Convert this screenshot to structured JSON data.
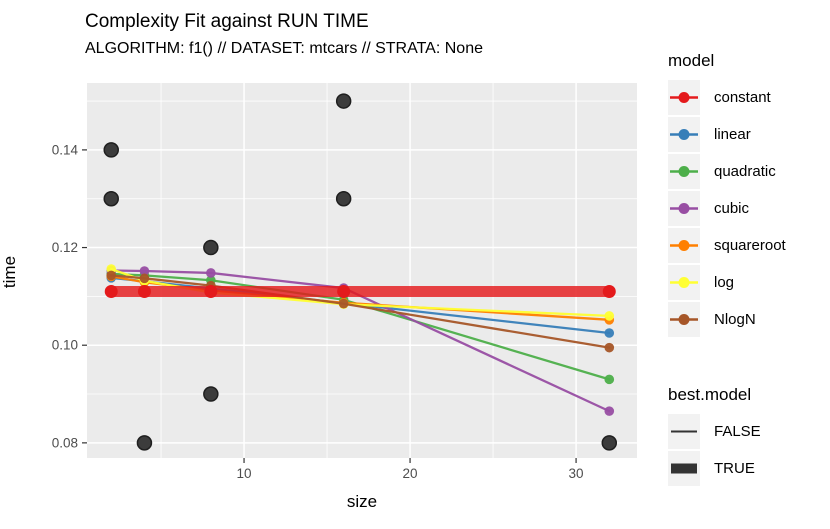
{
  "chart_data": {
    "type": "line",
    "title": "Complexity Fit against RUN TIME",
    "subtitle": "ALGORITHM: f1() // DATASET: mtcars // STRATA: None",
    "xlabel": "size",
    "ylabel": "time",
    "xlim": [
      0.54,
      33.67
    ],
    "ylim": [
      0.0769,
      0.1537
    ],
    "x_major_ticks": [
      10,
      20,
      30
    ],
    "x_tick_labels": [
      "10",
      "20",
      "30"
    ],
    "x_minor_gridlines": [
      5,
      15,
      25
    ],
    "y_major_ticks": [
      0.08,
      0.1,
      0.12,
      0.14
    ],
    "y_tick_labels": [
      "0.08",
      "0.10",
      "0.12",
      "0.14"
    ],
    "y_minor_gridlines": [
      0.09,
      0.11,
      0.13,
      0.15
    ],
    "grid": true,
    "legend_position": "right",
    "panel_background": "#ebebeb",
    "gridline_color": "#ffffff",
    "tick_mark_color": "#333333",
    "tick_text_color": "#4d4d4d",
    "x": [
      2,
      4,
      8,
      16,
      32
    ],
    "series": [
      {
        "name": "constant",
        "color": "#E41A1C",
        "best": true,
        "values": [
          0.111,
          0.111,
          0.111,
          0.111,
          0.111
        ]
      },
      {
        "name": "linear",
        "color": "#377EB8",
        "best": false,
        "values": [
          0.1138,
          0.1131,
          0.1116,
          0.1086,
          0.1025
        ]
      },
      {
        "name": "quadratic",
        "color": "#4DAF4A",
        "best": false,
        "values": [
          0.1146,
          0.1143,
          0.1133,
          0.1093,
          0.093
        ]
      },
      {
        "name": "cubic",
        "color": "#984EA3",
        "best": false,
        "values": [
          0.1153,
          0.1152,
          0.1148,
          0.1117,
          0.0865
        ]
      },
      {
        "name": "squareroot",
        "color": "#FF7F00",
        "best": false,
        "values": [
          0.1141,
          0.1129,
          0.1112,
          0.1087,
          0.1052
        ]
      },
      {
        "name": "log",
        "color": "#FFFF33",
        "best": false,
        "values": [
          0.1156,
          0.1132,
          0.1108,
          0.1084,
          0.106
        ]
      },
      {
        "name": "NlogN",
        "color": "#A65628",
        "best": false,
        "values": [
          0.1143,
          0.1137,
          0.1122,
          0.1085,
          0.0995
        ]
      }
    ],
    "scatter_points": {
      "color": "#3c3c3c",
      "stroke": "#1f1f1f",
      "points": [
        [
          2,
          0.14
        ],
        [
          2,
          0.13
        ],
        [
          4,
          0.08
        ],
        [
          8,
          0.12
        ],
        [
          8,
          0.09
        ],
        [
          16,
          0.15
        ],
        [
          16,
          0.13
        ],
        [
          32,
          0.08
        ]
      ]
    }
  },
  "legends": {
    "model": {
      "title": "model"
    },
    "best_model": {
      "title": "best.model",
      "items": [
        {
          "label": "FALSE",
          "style": "thin"
        },
        {
          "label": "TRUE",
          "style": "thick"
        }
      ],
      "glyph_color": "#333333"
    }
  }
}
